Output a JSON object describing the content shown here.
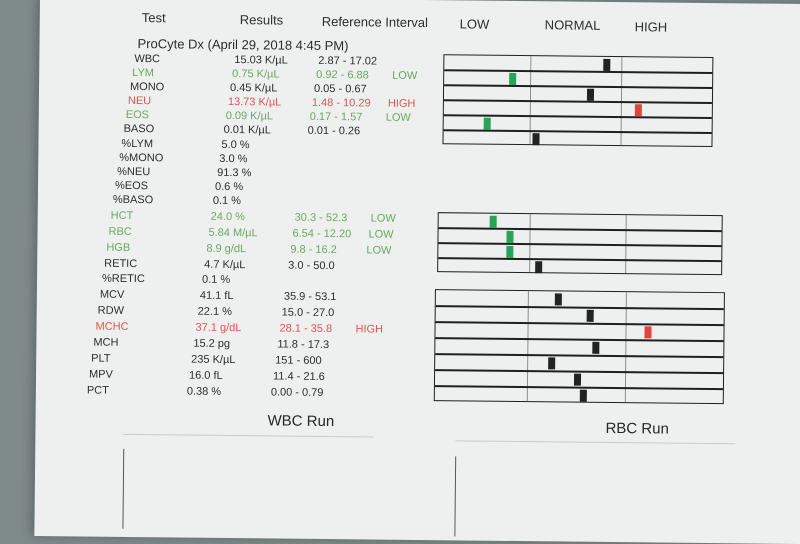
{
  "headers": {
    "test": "Test",
    "results": "Results",
    "reference": "Reference Interval",
    "low": "LOW",
    "normal": "NORMAL",
    "high": "HIGH"
  },
  "instrument": "ProCyte Dx (April 29, 2018 4:45 PM)",
  "rows": [
    {
      "test": "WBC",
      "result": "15.03 K/µL",
      "ref": "2.87 - 17.02",
      "flag": "",
      "status": "normal"
    },
    {
      "test": "LYM",
      "result": "0.75 K/µL",
      "ref": "0.92 - 6.88",
      "flag": "LOW",
      "status": "low"
    },
    {
      "test": "MONO",
      "result": "0.45 K/µL",
      "ref": "0.05 - 0.67",
      "flag": "",
      "status": "normal"
    },
    {
      "test": "NEU",
      "result": "13.73 K/µL",
      "ref": "1.48 - 10.29",
      "flag": "HIGH",
      "status": "high"
    },
    {
      "test": "EOS",
      "result": "0.09 K/µL",
      "ref": "0.17 - 1.57",
      "flag": "LOW",
      "status": "low"
    },
    {
      "test": "BASO",
      "result": "0.01 K/µL",
      "ref": "0.01 - 0.26",
      "flag": "",
      "status": "normal"
    },
    {
      "test": "%LYM",
      "result": "5.0 %",
      "ref": "",
      "flag": "",
      "status": "normal"
    },
    {
      "test": "%MONO",
      "result": "3.0 %",
      "ref": "",
      "flag": "",
      "status": "normal"
    },
    {
      "test": "%NEU",
      "result": "91.3 %",
      "ref": "",
      "flag": "",
      "status": "normal"
    },
    {
      "test": "%EOS",
      "result": "0.6 %",
      "ref": "",
      "flag": "",
      "status": "normal"
    },
    {
      "test": "%BASO",
      "result": "0.1 %",
      "ref": "",
      "flag": "",
      "status": "normal"
    },
    {
      "test": "HCT",
      "result": "24.0 %",
      "ref": "30.3 - 52.3",
      "flag": "LOW",
      "status": "low"
    },
    {
      "test": "RBC",
      "result": "5.84 M/µL",
      "ref": "6.54 - 12.20",
      "flag": "LOW",
      "status": "low"
    },
    {
      "test": "HGB",
      "result": "8.9 g/dL",
      "ref": "9.8 - 16.2",
      "flag": "LOW",
      "status": "low"
    },
    {
      "test": "RETIC",
      "result": "4.7 K/µL",
      "ref": "3.0 - 50.0",
      "flag": "",
      "status": "normal"
    },
    {
      "test": "%RETIC",
      "result": "0.1 %",
      "ref": "",
      "flag": "",
      "status": "normal"
    },
    {
      "test": "MCV",
      "result": "41.1 fL",
      "ref": "35.9 - 53.1",
      "flag": "",
      "status": "normal"
    },
    {
      "test": "RDW",
      "result": "22.1 %",
      "ref": "15.0 - 27.0",
      "flag": "",
      "status": "normal"
    },
    {
      "test": "MCHC",
      "result": "37.1 g/dL",
      "ref": "28.1 - 35.8",
      "flag": "HIGH",
      "status": "high"
    },
    {
      "test": "MCH",
      "result": "15.2 pg",
      "ref": "11.8 - 17.3",
      "flag": "",
      "status": "normal"
    },
    {
      "test": "PLT",
      "result": "235 K/µL",
      "ref": "151 - 600",
      "flag": "",
      "status": "normal"
    },
    {
      "test": "MPV",
      "result": "16.0 fL",
      "ref": "11.4 - 21.6",
      "flag": "",
      "status": "normal"
    },
    {
      "test": "PCT",
      "result": "0.38 %",
      "ref": "0.00 - 0.79",
      "flag": "",
      "status": "normal"
    }
  ],
  "range_groups": [
    {
      "name": "wbc",
      "rows": [
        {
          "test": "WBC",
          "level": 0.6,
          "status": "normal"
        },
        {
          "test": "LYM",
          "level": 0.25,
          "status": "low"
        },
        {
          "test": "MONO",
          "level": 0.54,
          "status": "normal"
        },
        {
          "test": "NEU",
          "level": 0.72,
          "status": "high"
        },
        {
          "test": "EOS",
          "level": 0.16,
          "status": "low"
        },
        {
          "test": "BASO",
          "level": 0.34,
          "status": "normal"
        }
      ]
    },
    {
      "name": "rbc",
      "rows": [
        {
          "test": "HCT",
          "level": 0.19,
          "status": "low"
        },
        {
          "test": "RBC",
          "level": 0.25,
          "status": "low"
        },
        {
          "test": "HGB",
          "level": 0.25,
          "status": "low"
        },
        {
          "test": "RETIC",
          "level": 0.35,
          "status": "normal"
        }
      ]
    },
    {
      "name": "indices",
      "rows": [
        {
          "test": "MCV",
          "level": 0.42,
          "status": "normal"
        },
        {
          "test": "RDW",
          "level": 0.53,
          "status": "normal"
        },
        {
          "test": "MCHC",
          "level": 0.73,
          "status": "high"
        },
        {
          "test": "MCH",
          "level": 0.55,
          "status": "normal"
        },
        {
          "test": "PLT",
          "level": 0.4,
          "status": "normal"
        },
        {
          "test": "MPV",
          "level": 0.49,
          "status": "normal"
        },
        {
          "test": "PCT",
          "level": 0.51,
          "status": "normal"
        }
      ]
    }
  ],
  "runs": {
    "wbc": "WBC Run",
    "rbc": "RBC Run"
  },
  "colors": {
    "low": "#29a35a",
    "high": "#e3433f",
    "normal": "#222222",
    "low_text": "#6aa55f",
    "high_text": "#e0534c"
  }
}
